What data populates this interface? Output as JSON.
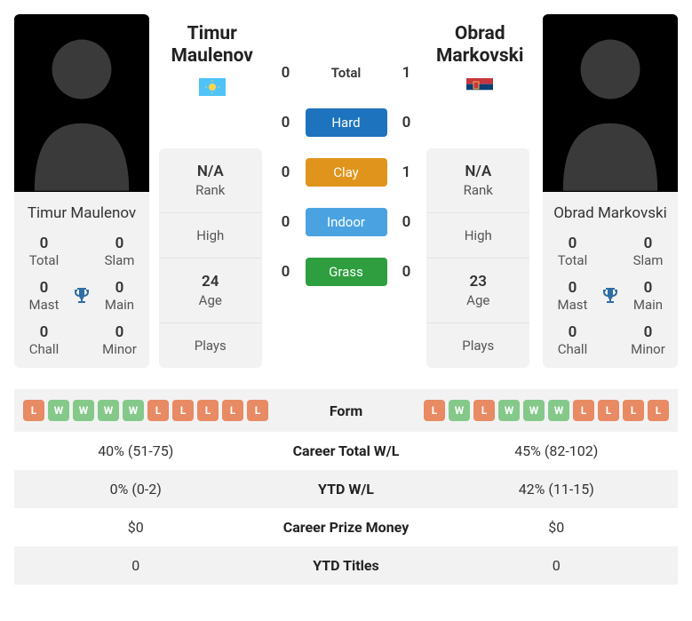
{
  "player1": {
    "name": "Timur Maulenov",
    "first": "Timur",
    "last": "Maulenov",
    "flag_colors": {
      "bg": "#4fc3f7",
      "sun": "#ffd54f"
    },
    "titles": {
      "total": {
        "value": "0",
        "label": "Total"
      },
      "slam": {
        "value": "0",
        "label": "Slam"
      },
      "mast": {
        "value": "0",
        "label": "Mast"
      },
      "main": {
        "value": "0",
        "label": "Main"
      },
      "chall": {
        "value": "0",
        "label": "Chall"
      },
      "minor": {
        "value": "0",
        "label": "Minor"
      }
    },
    "stats": {
      "rank": {
        "value": "N/A",
        "label": "Rank"
      },
      "high": {
        "value": "",
        "label": "High"
      },
      "age": {
        "value": "24",
        "label": "Age"
      },
      "plays": {
        "value": "",
        "label": "Plays"
      }
    },
    "form": [
      "L",
      "W",
      "W",
      "W",
      "W",
      "L",
      "L",
      "L",
      "L",
      "L"
    ]
  },
  "player2": {
    "name": "Obrad Markovski",
    "first": "Obrad",
    "last": "Markovski",
    "flag_colors": {
      "top": "#c6363c",
      "mid": "#0c4076",
      "bot": "#ffffff",
      "crest": "#ffd54f"
    },
    "titles": {
      "total": {
        "value": "0",
        "label": "Total"
      },
      "slam": {
        "value": "0",
        "label": "Slam"
      },
      "mast": {
        "value": "0",
        "label": "Mast"
      },
      "main": {
        "value": "0",
        "label": "Main"
      },
      "chall": {
        "value": "0",
        "label": "Chall"
      },
      "minor": {
        "value": "0",
        "label": "Minor"
      }
    },
    "stats": {
      "rank": {
        "value": "N/A",
        "label": "Rank"
      },
      "high": {
        "value": "",
        "label": "High"
      },
      "age": {
        "value": "23",
        "label": "Age"
      },
      "plays": {
        "value": "",
        "label": "Plays"
      }
    },
    "form": [
      "L",
      "W",
      "L",
      "W",
      "W",
      "W",
      "L",
      "L",
      "L",
      "L"
    ]
  },
  "h2h": {
    "rows": [
      {
        "label": "Total",
        "p1": "0",
        "p2": "1",
        "color": null
      },
      {
        "label": "Hard",
        "p1": "0",
        "p2": "0",
        "color": "#1e73be"
      },
      {
        "label": "Clay",
        "p1": "0",
        "p2": "1",
        "color": "#e0941b"
      },
      {
        "label": "Indoor",
        "p1": "0",
        "p2": "0",
        "color": "#4aa3e0"
      },
      {
        "label": "Grass",
        "p1": "0",
        "p2": "0",
        "color": "#2e9e3f"
      }
    ]
  },
  "compare": {
    "rows": [
      {
        "label": "Form",
        "p1": null,
        "p2": null
      },
      {
        "label": "Career Total W/L",
        "p1": "40% (51-75)",
        "p2": "45% (82-102)"
      },
      {
        "label": "YTD W/L",
        "p1": "0% (0-2)",
        "p2": "42% (11-15)"
      },
      {
        "label": "Career Prize Money",
        "p1": "$0",
        "p2": "$0"
      },
      {
        "label": "YTD Titles",
        "p1": "0",
        "p2": "0"
      }
    ]
  },
  "colors": {
    "chip_win": "#84c98a",
    "chip_loss": "#e88a63",
    "trophy": "#2f6ea5",
    "card_bg": "#f2f2f2"
  }
}
